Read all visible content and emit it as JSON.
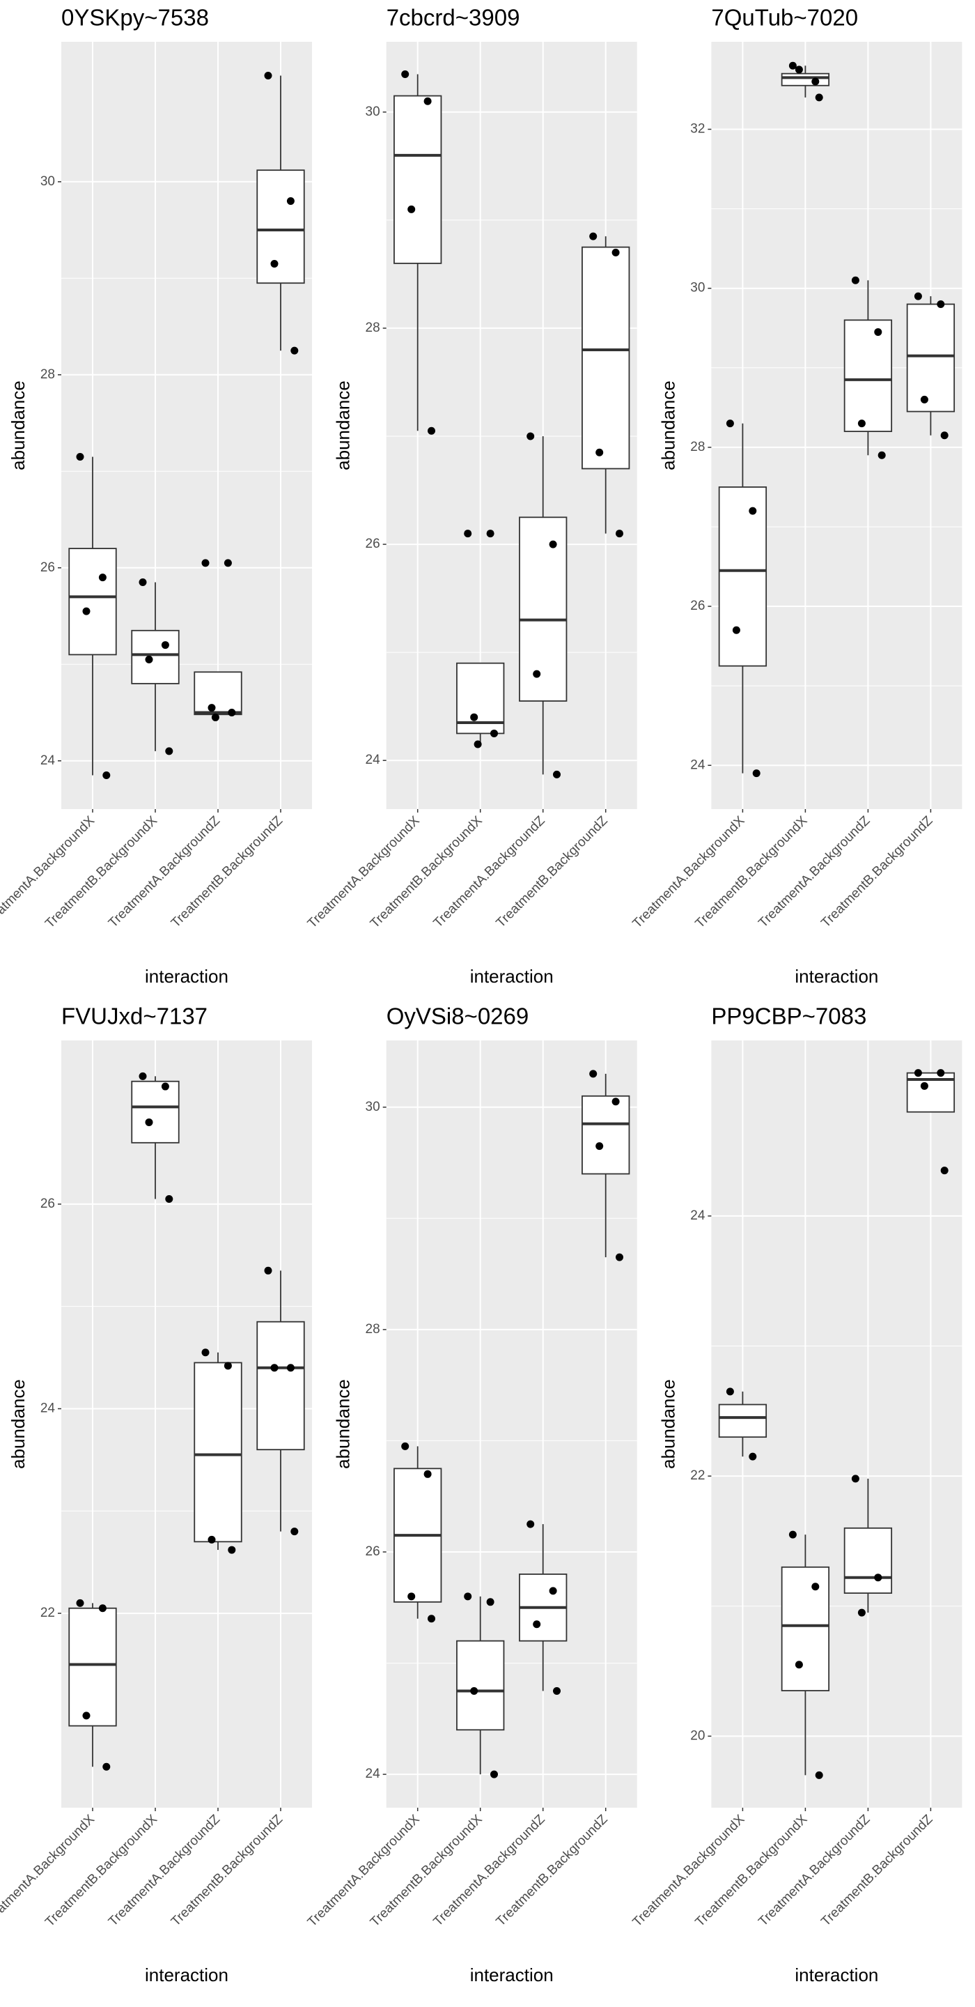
{
  "chart_data": [
    {
      "type": "box",
      "title": "0YSKpy~7538",
      "x_label": "interaction",
      "y_label": "abundance",
      "categories": [
        "TreatmentA.BackgroundX",
        "TreatmentB.BackgroundX",
        "TreatmentA.BackgroundZ",
        "TreatmentB.BackgroundZ"
      ],
      "ylim": [
        23.5,
        31.45
      ],
      "yticks": [
        24,
        26,
        28,
        30
      ],
      "boxes": [
        {
          "min": 23.85,
          "q1": 25.1,
          "median": 25.7,
          "q3": 26.2,
          "max": 27.15,
          "points": [
            27.15,
            25.9,
            25.55,
            23.85
          ]
        },
        {
          "min": 24.1,
          "q1": 24.8,
          "median": 25.1,
          "q3": 25.35,
          "max": 25.85,
          "points": [
            25.85,
            25.2,
            25.05,
            24.1
          ]
        },
        {
          "min": 24.45,
          "q1": 24.48,
          "median": 24.5,
          "q3": 24.92,
          "max": 24.92,
          "points": [
            26.05,
            26.05,
            24.55,
            24.5,
            24.45
          ]
        },
        {
          "min": 28.25,
          "q1": 28.95,
          "median": 29.5,
          "q3": 30.12,
          "max": 31.1,
          "points": [
            31.1,
            29.8,
            29.15,
            28.25
          ]
        }
      ]
    },
    {
      "type": "box",
      "title": "7cbcrd~3909",
      "x_label": "interaction",
      "y_label": "abundance",
      "categories": [
        "TreatmentA.BackgroundX",
        "TreatmentB.BackgroundX",
        "TreatmentA.BackgroundZ",
        "TreatmentB.BackgroundZ"
      ],
      "ylim": [
        23.55,
        30.65
      ],
      "yticks": [
        24,
        26,
        28,
        30
      ],
      "boxes": [
        {
          "min": 27.05,
          "q1": 28.6,
          "median": 29.6,
          "q3": 30.15,
          "max": 30.35,
          "points": [
            30.35,
            30.1,
            29.1,
            27.05
          ]
        },
        {
          "min": 24.15,
          "q1": 24.25,
          "median": 24.35,
          "q3": 24.9,
          "max": 24.9,
          "points": [
            26.1,
            26.1,
            24.4,
            24.25,
            24.15
          ]
        },
        {
          "min": 23.87,
          "q1": 24.55,
          "median": 25.3,
          "q3": 26.25,
          "max": 27.0,
          "points": [
            27.0,
            26.0,
            24.8,
            23.87
          ]
        },
        {
          "min": 26.1,
          "q1": 26.7,
          "median": 27.8,
          "q3": 28.75,
          "max": 28.85,
          "points": [
            28.85,
            28.7,
            26.85,
            26.1
          ]
        }
      ]
    },
    {
      "type": "box",
      "title": "7QuTub~7020",
      "x_label": "interaction",
      "y_label": "abundance",
      "categories": [
        "TreatmentA.BackgroundX",
        "TreatmentB.BackgroundX",
        "TreatmentA.BackgroundZ",
        "TreatmentB.BackgroundZ"
      ],
      "ylim": [
        23.45,
        33.1
      ],
      "yticks": [
        24,
        26,
        28,
        30,
        32
      ],
      "boxes": [
        {
          "min": 23.9,
          "q1": 25.25,
          "median": 26.45,
          "q3": 27.5,
          "max": 28.3,
          "points": [
            28.3,
            27.2,
            25.7,
            23.9
          ]
        },
        {
          "min": 32.4,
          "q1": 32.55,
          "median": 32.65,
          "q3": 32.7,
          "max": 32.8,
          "points": [
            32.8,
            32.6,
            32.75,
            32.4
          ]
        },
        {
          "min": 27.9,
          "q1": 28.2,
          "median": 28.85,
          "q3": 29.6,
          "max": 30.1,
          "points": [
            30.1,
            29.45,
            28.3,
            27.9
          ]
        },
        {
          "min": 28.15,
          "q1": 28.45,
          "median": 29.15,
          "q3": 29.8,
          "max": 29.9,
          "points": [
            29.9,
            29.8,
            28.6,
            28.15
          ]
        }
      ]
    },
    {
      "type": "box",
      "title": "FVUJxd~7137",
      "x_label": "interaction",
      "y_label": "abundance",
      "categories": [
        "TreatmentA.BackgroundX",
        "TreatmentB.BackgroundX",
        "TreatmentA.BackgroundZ",
        "TreatmentB.BackgroundZ"
      ],
      "ylim": [
        20.1,
        27.6
      ],
      "yticks": [
        22,
        24,
        26
      ],
      "boxes": [
        {
          "min": 20.5,
          "q1": 20.9,
          "median": 21.5,
          "q3": 22.05,
          "max": 22.1,
          "points": [
            22.1,
            22.05,
            21.0,
            20.5
          ]
        },
        {
          "min": 26.05,
          "q1": 26.6,
          "median": 26.95,
          "q3": 27.2,
          "max": 27.25,
          "points": [
            27.25,
            27.15,
            26.8,
            26.05
          ]
        },
        {
          "min": 22.62,
          "q1": 22.7,
          "median": 23.55,
          "q3": 24.45,
          "max": 24.55,
          "points": [
            24.55,
            24.42,
            22.72,
            22.62
          ]
        },
        {
          "min": 22.8,
          "q1": 23.6,
          "median": 24.4,
          "q3": 24.85,
          "max": 25.35,
          "points": [
            25.35,
            24.4,
            24.4,
            22.8
          ]
        }
      ]
    },
    {
      "type": "box",
      "title": "OyVSi8~0269",
      "x_label": "interaction",
      "y_label": "abundance",
      "categories": [
        "TreatmentA.BackgroundX",
        "TreatmentB.BackgroundX",
        "TreatmentA.BackgroundZ",
        "TreatmentB.BackgroundZ"
      ],
      "ylim": [
        23.7,
        30.6
      ],
      "yticks": [
        24,
        26,
        28,
        30
      ],
      "boxes": [
        {
          "min": 25.4,
          "q1": 25.55,
          "median": 26.15,
          "q3": 26.75,
          "max": 26.95,
          "points": [
            26.95,
            26.7,
            25.6,
            25.4
          ]
        },
        {
          "min": 24.0,
          "q1": 24.4,
          "median": 24.75,
          "q3": 25.2,
          "max": 25.6,
          "points": [
            25.6,
            25.55,
            24.75,
            24.0
          ]
        },
        {
          "min": 24.75,
          "q1": 25.2,
          "median": 25.5,
          "q3": 25.8,
          "max": 26.25,
          "points": [
            26.25,
            25.65,
            25.35,
            24.75
          ]
        },
        {
          "min": 28.65,
          "q1": 29.4,
          "median": 29.85,
          "q3": 30.1,
          "max": 30.3,
          "points": [
            30.3,
            30.05,
            29.65,
            28.65
          ]
        }
      ]
    },
    {
      "type": "box",
      "title": "PP9CBP~7083",
      "x_label": "interaction",
      "y_label": "abundance",
      "categories": [
        "TreatmentA.BackgroundX",
        "TreatmentB.BackgroundX",
        "TreatmentA.BackgroundZ",
        "TreatmentB.BackgroundZ"
      ],
      "ylim": [
        19.45,
        25.35
      ],
      "yticks": [
        20,
        22,
        24
      ],
      "boxes": [
        {
          "min": 22.15,
          "q1": 22.3,
          "median": 22.45,
          "q3": 22.55,
          "max": 22.65,
          "points": [
            22.65,
            22.15
          ]
        },
        {
          "min": 19.7,
          "q1": 20.35,
          "median": 20.85,
          "q3": 21.3,
          "max": 21.55,
          "points": [
            21.55,
            21.15,
            20.55,
            19.7
          ]
        },
        {
          "min": 20.95,
          "q1": 21.1,
          "median": 21.22,
          "q3": 21.6,
          "max": 21.98,
          "points": [
            21.98,
            21.22,
            20.95
          ]
        },
        {
          "min": 24.8,
          "q1": 24.8,
          "median": 25.05,
          "q3": 25.1,
          "max": 25.1,
          "points": [
            25.1,
            25.1,
            25.0,
            24.35
          ]
        }
      ]
    }
  ]
}
